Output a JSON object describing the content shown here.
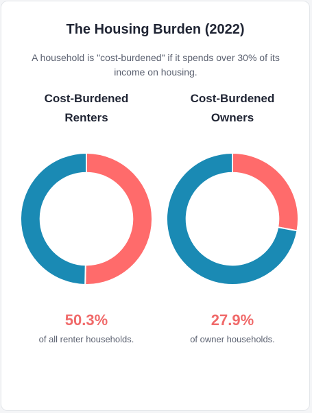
{
  "title": "The Housing Burden (2022)",
  "subtitle": "A household is \"cost-burdened\" if it spends over 30% of its income on housing.",
  "colors": {
    "burdened": "#ff6b6b",
    "not_burdened": "#1a8ab4",
    "highlight_text": "#f06a6a"
  },
  "chart_data": [
    {
      "type": "pie",
      "title": "Cost-Burdened Renters",
      "values": [
        50.3,
        49.7
      ],
      "value_label": "50.3%",
      "description": "of all renter households."
    },
    {
      "type": "pie",
      "title": "Cost-Burdened Owners",
      "values": [
        27.9,
        72.1
      ],
      "value_label": "27.9%",
      "description": "of owner households."
    }
  ]
}
